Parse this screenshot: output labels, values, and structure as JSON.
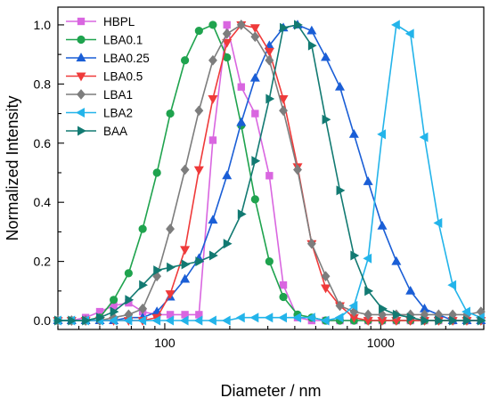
{
  "chart_data": {
    "type": "line",
    "title": "",
    "xlabel": "Diameter / nm",
    "ylabel": "Normalized Intensity",
    "xscale": "log",
    "xlim": [
      32,
      3000
    ],
    "ylim": [
      -0.03,
      1.06
    ],
    "xticks": [
      {
        "value": 100,
        "label": "100"
      },
      {
        "value": 1000,
        "label": "1000"
      }
    ],
    "yticks": [
      {
        "value": 0.0,
        "label": "0.0"
      },
      {
        "value": 0.2,
        "label": "0.2"
      },
      {
        "value": 0.4,
        "label": "0.4"
      },
      {
        "value": 0.6,
        "label": "0.6"
      },
      {
        "value": 0.8,
        "label": "0.8"
      },
      {
        "value": 1.0,
        "label": "1.0"
      }
    ],
    "grid": false,
    "legend_position": "top-left",
    "x": [
      32,
      37,
      43,
      50,
      58,
      68,
      79,
      92,
      106,
      124,
      144,
      167,
      194,
      226,
      262,
      305,
      354,
      412,
      479,
      556,
      647,
      752,
      874,
      1016,
      1181,
      1373,
      1595,
      1854,
      2154,
      2504,
      2911
    ],
    "series": [
      {
        "name": "HBPL",
        "color": "#d966e0",
        "marker": "square",
        "hollow": false,
        "values": [
          0,
          0,
          0.01,
          0.03,
          0.05,
          0.06,
          0.03,
          0.02,
          0.02,
          0.02,
          0.02,
          0.61,
          1.0,
          0.79,
          0.7,
          0.49,
          0.12,
          0.01,
          0,
          0,
          0,
          0,
          0,
          0,
          0,
          0,
          0,
          0,
          0,
          0,
          0
        ]
      },
      {
        "name": "LBA0.1",
        "color": "#1fa34e",
        "marker": "circle",
        "hollow": false,
        "values": [
          0,
          0,
          0,
          0.01,
          0.07,
          0.16,
          0.31,
          0.5,
          0.7,
          0.88,
          0.98,
          1.0,
          0.89,
          0.66,
          0.41,
          0.2,
          0.08,
          0.02,
          0.01,
          0,
          0,
          0,
          0,
          0,
          0,
          0,
          0,
          0,
          0,
          0,
          0
        ]
      },
      {
        "name": "LBA0.25",
        "color": "#1a5ed6",
        "marker": "triangle-up",
        "hollow": false,
        "values": [
          0,
          0,
          0,
          0,
          0,
          0.01,
          0.01,
          0.03,
          0.08,
          0.14,
          0.21,
          0.34,
          0.49,
          0.67,
          0.82,
          0.93,
          0.99,
          1.0,
          0.98,
          0.89,
          0.79,
          0.63,
          0.47,
          0.32,
          0.2,
          0.1,
          0.04,
          0.02,
          0,
          0,
          0
        ]
      },
      {
        "name": "LBA0.5",
        "color": "#ef3a3a",
        "marker": "triangle-down",
        "hollow": false,
        "values": [
          0,
          0,
          0,
          0,
          0,
          0,
          0,
          0.01,
          0.09,
          0.24,
          0.51,
          0.75,
          0.94,
          1.0,
          0.99,
          0.91,
          0.75,
          0.52,
          0.26,
          0.11,
          0.05,
          0.01,
          0,
          0,
          0,
          0,
          0,
          0,
          0,
          0,
          0
        ]
      },
      {
        "name": "LBA1",
        "color": "#7d7d7d",
        "marker": "diamond",
        "hollow": false,
        "values": [
          0,
          0,
          0,
          0,
          0.01,
          0.02,
          0.04,
          0.15,
          0.31,
          0.51,
          0.71,
          0.88,
          0.97,
          1.0,
          0.96,
          0.88,
          0.71,
          0.51,
          0.26,
          0.15,
          0.05,
          0.03,
          0.02,
          0.02,
          0.02,
          0.02,
          0.02,
          0.02,
          0.02,
          0.02,
          0.03
        ]
      },
      {
        "name": "LBA2",
        "color": "#23b4ea",
        "marker": "triangle-left",
        "hollow": false,
        "values": [
          0,
          0,
          0,
          0,
          0,
          0,
          0,
          0,
          0,
          0,
          0,
          0,
          0,
          0.01,
          0.01,
          0.01,
          0.01,
          0.01,
          0.01,
          0,
          0.01,
          0.05,
          0.21,
          0.63,
          1.0,
          0.97,
          0.62,
          0.33,
          0.12,
          0.03,
          0.01
        ]
      },
      {
        "name": "BAA",
        "color": "#127a72",
        "marker": "triangle-right",
        "hollow": false,
        "values": [
          0,
          0,
          0,
          0.01,
          0.03,
          0.07,
          0.12,
          0.17,
          0.18,
          0.19,
          0.2,
          0.22,
          0.26,
          0.36,
          0.54,
          0.75,
          0.99,
          1.0,
          0.93,
          0.68,
          0.44,
          0.22,
          0.1,
          0.04,
          0.02,
          0.01,
          0,
          0,
          0,
          0,
          0
        ]
      }
    ]
  }
}
